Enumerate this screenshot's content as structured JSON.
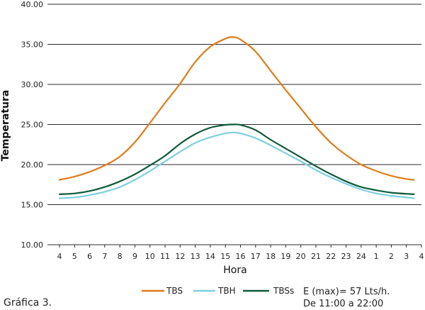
{
  "caption": "Gráfica 3.",
  "chart_data": {
    "type": "line",
    "title": "",
    "xlabel": "Hora",
    "ylabel": "Temperatura",
    "ylim": [
      10,
      40
    ],
    "y_ticks": [
      "10.00",
      "15.00",
      "20.00",
      "25.00",
      "30.00",
      "35.00",
      "40.00"
    ],
    "x_ticks": [
      "4",
      "5",
      "6",
      "7",
      "8",
      "9",
      "10",
      "11",
      "12",
      "13",
      "14",
      "15",
      "16",
      "17",
      "18",
      "19",
      "20",
      "21",
      "22",
      "23",
      "24",
      "1",
      "2",
      "3",
      "4"
    ],
    "x_data_range": [
      "4",
      "3.5"
    ],
    "grid": "horizontal",
    "legend_position": "bottom",
    "series": [
      {
        "name": "TBS",
        "color": "#e07b1a",
        "x": [
          "4",
          "5",
          "6",
          "7",
          "8",
          "9",
          "10",
          "11",
          "12",
          "13",
          "14",
          "15",
          "15.5",
          "16",
          "17",
          "18",
          "19",
          "20",
          "21",
          "22",
          "23",
          "24",
          "1",
          "2",
          "3",
          "3.5"
        ],
        "values": [
          18.1,
          18.5,
          19.1,
          19.9,
          21.0,
          22.8,
          25.2,
          27.7,
          30.1,
          32.8,
          34.7,
          35.7,
          35.9,
          35.6,
          34.1,
          31.7,
          29.3,
          27.0,
          24.7,
          22.7,
          21.2,
          20.0,
          19.2,
          18.6,
          18.2,
          18.1
        ]
      },
      {
        "name": "TBH",
        "color": "#7ecfe0",
        "x": [
          "4",
          "5",
          "6",
          "7",
          "8",
          "9",
          "10",
          "11",
          "12",
          "13",
          "14",
          "15",
          "15.5",
          "16",
          "17",
          "18",
          "19",
          "20",
          "21",
          "22",
          "23",
          "24",
          "1",
          "2",
          "3",
          "3.5"
        ],
        "values": [
          15.8,
          15.9,
          16.2,
          16.6,
          17.2,
          18.1,
          19.2,
          20.4,
          21.6,
          22.7,
          23.4,
          23.9,
          24.0,
          23.9,
          23.3,
          22.4,
          21.4,
          20.4,
          19.3,
          18.4,
          17.6,
          16.9,
          16.4,
          16.1,
          15.9,
          15.8
        ]
      },
      {
        "name": "TBSs",
        "color": "#0e5a3a",
        "x": [
          "4",
          "5",
          "6",
          "7",
          "8",
          "9",
          "10",
          "11",
          "12",
          "13",
          "14",
          "15",
          "15.5",
          "16",
          "17",
          "18",
          "19",
          "20",
          "21",
          "22",
          "23",
          "24",
          "1",
          "2",
          "3",
          "3.5"
        ],
        "values": [
          16.3,
          16.4,
          16.7,
          17.2,
          17.9,
          18.8,
          19.9,
          21.1,
          22.6,
          23.8,
          24.6,
          24.95,
          25.0,
          24.95,
          24.3,
          23.1,
          22.0,
          20.9,
          19.8,
          18.8,
          17.9,
          17.2,
          16.8,
          16.5,
          16.35,
          16.3
        ]
      }
    ],
    "annotation": [
      "E (max)= 57 Lts/h.",
      "De 11:00 a 22:00"
    ]
  }
}
